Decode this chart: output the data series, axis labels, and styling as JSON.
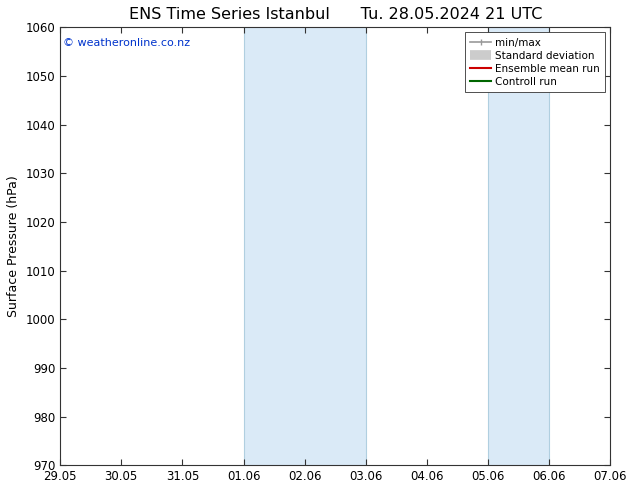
{
  "title_left": "ENS Time Series Istanbul",
  "title_right": "Tu. 28.05.2024 21 UTC",
  "ylabel": "Surface Pressure (hPa)",
  "ylim": [
    970,
    1060
  ],
  "yticks": [
    970,
    980,
    990,
    1000,
    1010,
    1020,
    1030,
    1040,
    1050,
    1060
  ],
  "xtick_labels": [
    "29.05",
    "30.05",
    "31.05",
    "01.06",
    "02.06",
    "03.06",
    "04.06",
    "05.06",
    "06.06",
    "07.06"
  ],
  "xtick_positions": [
    0,
    1,
    2,
    3,
    4,
    5,
    6,
    7,
    8,
    9
  ],
  "shaded_regions": [
    {
      "xmin": 3,
      "xmax": 5
    },
    {
      "xmin": 7,
      "xmax": 8
    }
  ],
  "shade_color": "#daeaf7",
  "shade_border_color": "#b0cfe0",
  "copyright_text": "© weatheronline.co.nz",
  "copyright_color": "#0033cc",
  "legend_entries": [
    {
      "label": "min/max",
      "color": "#999999",
      "lw": 1.2
    },
    {
      "label": "Standard deviation",
      "color": "#cccccc",
      "lw": 7
    },
    {
      "label": "Ensemble mean run",
      "color": "#cc0000",
      "lw": 1.5
    },
    {
      "label": "Controll run",
      "color": "#006600",
      "lw": 1.5
    }
  ],
  "bg_color": "#ffffff",
  "title_fontsize": 11.5,
  "axis_label_fontsize": 9,
  "tick_fontsize": 8.5
}
